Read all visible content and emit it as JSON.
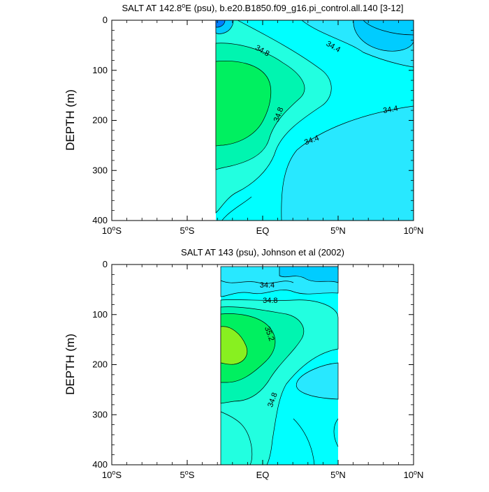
{
  "chart_data": [
    {
      "type": "contour",
      "title": "SALT AT 142.8°E (psu), b.e20.B1850.f09_g16.pi_control.all.140 [3-12]",
      "title_parts": {
        "pre": "SALT AT 142.8",
        "sup": "o",
        "post": "E (psu), b.e20.B1850.f09_g16.pi_control.all.140 [3-12]"
      },
      "ylabel": "DEPTH (m)",
      "xlim": [
        -10,
        10
      ],
      "ylim": [
        400,
        0
      ],
      "y_ticks": [
        "0",
        "100",
        "200",
        "300",
        "400"
      ],
      "x_ticks": [
        {
          "num": "10",
          "hemi": "S"
        },
        {
          "num": "5",
          "hemi": "S"
        },
        {
          "num": "EQ",
          "hemi": ""
        },
        {
          "num": "5",
          "hemi": "N"
        },
        {
          "num": "10",
          "hemi": "N"
        }
      ],
      "data_extent_lat": [
        -3,
        10
      ],
      "data_extent_depth": [
        5,
        400
      ],
      "contour_labels": [
        {
          "text": "34.8",
          "lat": -0.1,
          "depth": 65
        },
        {
          "text": "34.4",
          "lat": 4.6,
          "depth": 57
        },
        {
          "text": "34.8",
          "lat": 1.2,
          "depth": 190
        },
        {
          "text": "34.4",
          "lat": 3.3,
          "depth": 244
        },
        {
          "text": "34.4",
          "lat": 8.5,
          "depth": 183
        }
      ],
      "colors": {
        "fresh": "#00ccff",
        "cyan": "#00ffff",
        "aqua": "#22ffe0",
        "teal": "#00f5b0",
        "green": "#00f060",
        "lime": "#88f020",
        "deep": "#0080ff"
      }
    },
    {
      "type": "contour",
      "title": "SALT AT 143 (psu), Johnson et al (2002)",
      "ylabel": "DEPTH (m)",
      "xlim": [
        -10,
        10
      ],
      "ylim": [
        400,
        0
      ],
      "y_ticks": [
        "0",
        "100",
        "200",
        "300",
        "400"
      ],
      "x_ticks": [
        {
          "num": "10",
          "hemi": "S"
        },
        {
          "num": "5",
          "hemi": "S"
        },
        {
          "num": "EQ",
          "hemi": ""
        },
        {
          "num": "5",
          "hemi": "N"
        },
        {
          "num": "10",
          "hemi": "N"
        }
      ],
      "data_extent_lat": [
        -2.8,
        5
      ],
      "data_extent_depth": [
        5,
        400
      ],
      "contour_labels": [
        {
          "text": "34.4",
          "lat": 0.3,
          "depth": 46
        },
        {
          "text": "34.8",
          "lat": 0.5,
          "depth": 77
        },
        {
          "text": "35.2",
          "lat": 0.3,
          "depth": 140
        },
        {
          "text": "34.8",
          "lat": 0.8,
          "depth": 272
        }
      ]
    }
  ]
}
